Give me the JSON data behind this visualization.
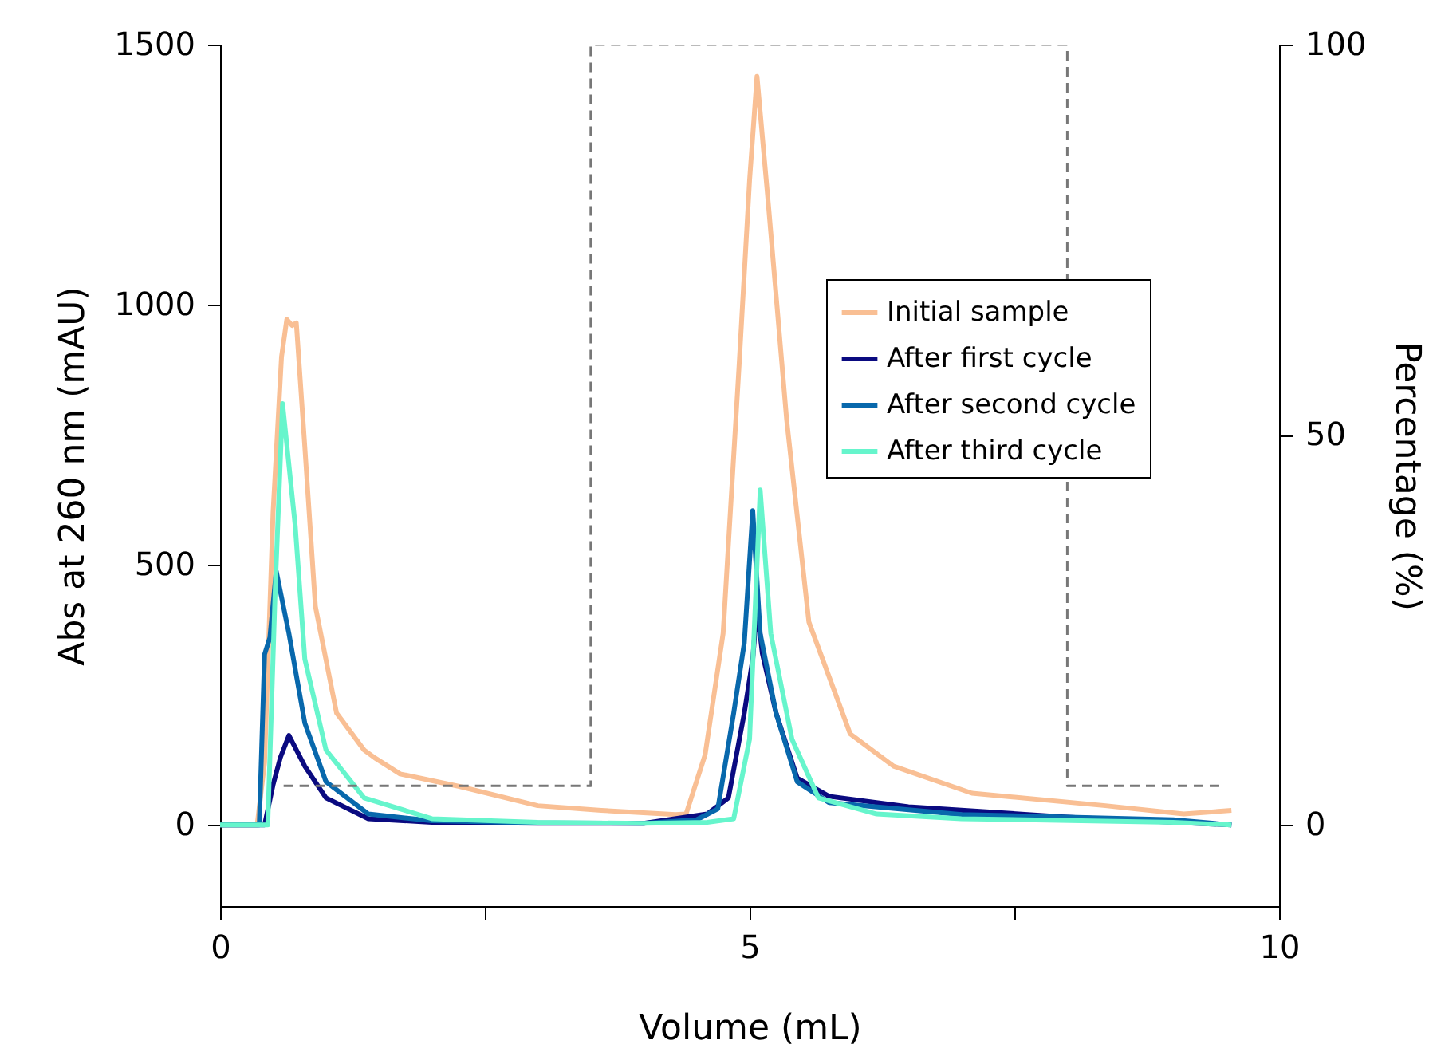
{
  "chart_data": {
    "type": "line",
    "xlabel": "Volume (mL)",
    "ylabel": "Abs at 260 nm (mAU)",
    "y2label": "Percentage (%)",
    "xlim": [
      0,
      10
    ],
    "xticks": [
      0,
      {
        "value": 2.5,
        "label": null
      },
      5,
      {
        "value": 7.5,
        "label": null
      },
      10
    ],
    "ylim": [
      -156,
      1500
    ],
    "yticks": [
      0,
      500,
      1000,
      1500
    ],
    "y2lim": [
      -10.4,
      100
    ],
    "y2ticks": [
      0,
      50,
      100
    ],
    "legend": "top right",
    "grid": false,
    "series": [
      {
        "name": "Initial sample",
        "color": "#f9bf94",
        "x": [
          0,
          0.35,
          0.42,
          0.5,
          0.58,
          0.63,
          0.68,
          0.72,
          0.8,
          0.9,
          1.1,
          1.36,
          1.46,
          1.7,
          2.26,
          3.0,
          3.6,
          4.3,
          4.4,
          4.58,
          4.75,
          4.9,
          5.0,
          5.07,
          5.18,
          5.35,
          5.56,
          5.95,
          6.36,
          7.1,
          8.36,
          9.1,
          9.55
        ],
        "values": [
          0,
          0,
          120,
          600,
          900,
          972,
          960,
          965,
          727,
          420,
          215,
          144,
          129,
          98,
          74,
          37,
          28,
          20,
          21,
          135,
          368,
          880,
          1240,
          1439,
          1187,
          779,
          390,
          175,
          113,
          61,
          37,
          21,
          28
        ]
      },
      {
        "name": "After first cycle",
        "color": "#0a0a80",
        "x": [
          0,
          0.42,
          0.5,
          0.57,
          0.65,
          0.8,
          1.0,
          1.4,
          2.0,
          3.0,
          4.0,
          4.6,
          4.8,
          4.95,
          5.03,
          5.07,
          5.12,
          5.25,
          5.45,
          5.75,
          6.5,
          8.0,
          9.55
        ],
        "values": [
          0,
          0,
          77,
          130,
          172,
          113,
          52,
          12,
          5,
          3,
          3,
          21,
          52,
          215,
          319,
          420,
          330,
          215,
          90,
          55,
          35,
          15,
          0
        ]
      },
      {
        "name": "After second cycle",
        "color": "#0868ac",
        "x": [
          0,
          0.37,
          0.42,
          0.47,
          0.53,
          0.65,
          0.8,
          1.0,
          1.4,
          2.0,
          3.0,
          4.0,
          4.5,
          4.7,
          4.85,
          4.95,
          5.03,
          5.1,
          5.25,
          5.45,
          5.75,
          7.0,
          9.0,
          9.55
        ],
        "values": [
          0,
          0,
          328,
          360,
          488,
          368,
          196,
          83,
          21,
          8,
          4,
          3,
          10,
          31,
          215,
          350,
          604,
          368,
          215,
          83,
          43,
          20,
          10,
          0
        ]
      },
      {
        "name": "After third cycle",
        "color": "#66f5cc",
        "x": [
          0,
          0.45,
          0.52,
          0.59,
          0.71,
          0.8,
          1.0,
          1.36,
          2.0,
          3.0,
          4.0,
          4.6,
          4.85,
          5.0,
          5.1,
          5.2,
          5.4,
          5.65,
          6.2,
          7.0,
          9.0,
          9.55
        ],
        "values": [
          0,
          0,
          450,
          810,
          574,
          319,
          144,
          52,
          12,
          5,
          3,
          5,
          12,
          165,
          644,
          368,
          165,
          52,
          21,
          12,
          5,
          0
        ]
      },
      {
        "type": "line",
        "axis": "y2",
        "color": "#777777",
        "line_style": "dashed",
        "x": [
          0.6,
          3.5,
          3.5,
          8.0,
          8.0,
          9.45
        ],
        "values": [
          5,
          5,
          100,
          100,
          5,
          5
        ]
      }
    ]
  }
}
